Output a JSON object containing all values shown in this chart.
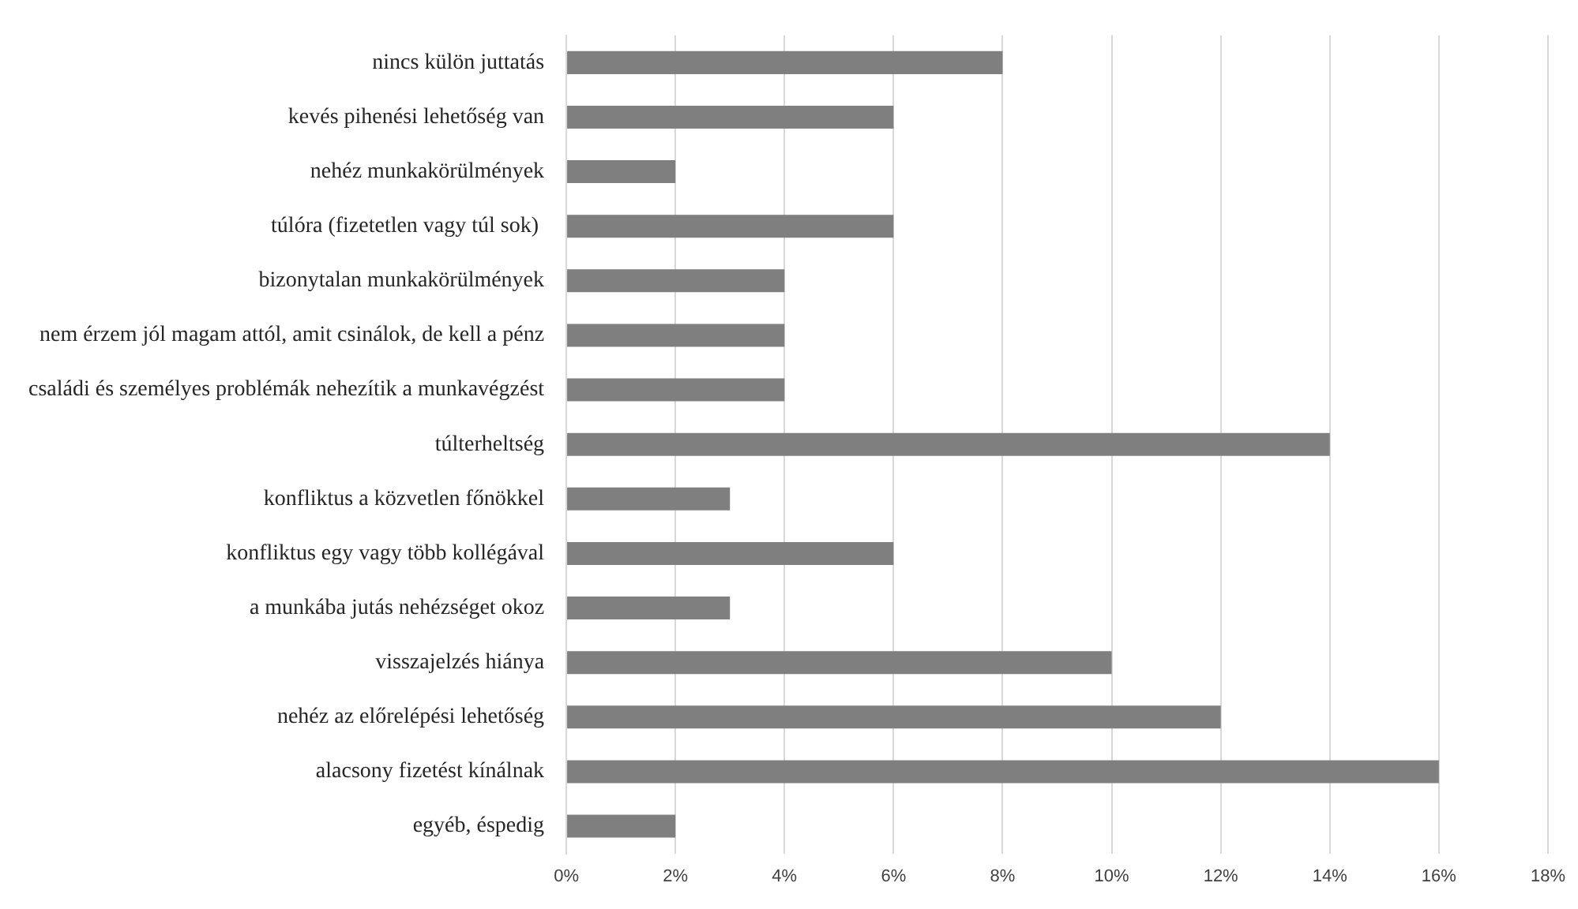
{
  "chart_data": {
    "type": "bar",
    "orientation": "horizontal",
    "categories": [
      "nincs külön juttatás",
      "kevés pihenési lehetőség van",
      "nehéz munkakörülmények",
      "túlóra (fizetetlen vagy túl sok) ",
      "bizonytalan munkakörülmények",
      "nem érzem jól magam attól, amit csinálok, de kell a pénz",
      "családi és személyes problémák nehezítik a munkavégzést",
      "túlterheltség",
      "konfliktus a közvetlen főnökkel",
      "konfliktus egy vagy több kollégával",
      "a munkába jutás nehézséget okoz",
      "visszajelzés hiánya",
      "nehéz az előrelépési lehetőség",
      "alacsony fizetést kínálnak",
      "egyéb, éspedig"
    ],
    "values": [
      8,
      6,
      2,
      6,
      4,
      4,
      4,
      14,
      3,
      6,
      3,
      10,
      12,
      16,
      2
    ],
    "color": "#7f7f7f",
    "xlim": [
      0,
      18
    ],
    "xticks": [
      {
        "value": 0,
        "label": "0%"
      },
      {
        "value": 2,
        "label": "2%"
      },
      {
        "value": 4,
        "label": "4%"
      },
      {
        "value": 6,
        "label": "6%"
      },
      {
        "value": 8,
        "label": "8%"
      },
      {
        "value": 10,
        "label": "10%"
      },
      {
        "value": 12,
        "label": "12%"
      },
      {
        "value": 14,
        "label": "14%"
      },
      {
        "value": 16,
        "label": "16%"
      },
      {
        "value": 18,
        "label": "18%"
      }
    ],
    "grid": "x",
    "legend": false
  }
}
